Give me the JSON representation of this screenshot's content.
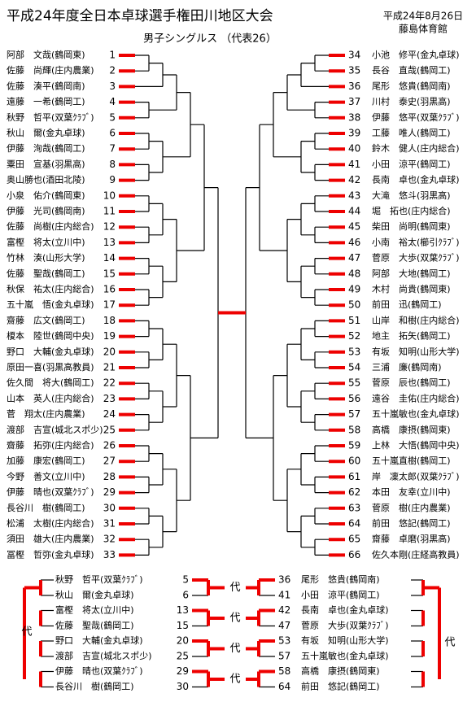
{
  "header": {
    "title": "平成24年度全日本卓球選手権田川地区大会",
    "subtitle": "男子シングルス （代表26）",
    "date": "平成24年8月26日",
    "venue": "藤島体育館"
  },
  "left_players": [
    {
      "name": "阿部　文哉(鶴岡東)",
      "no": 1
    },
    {
      "name": "佐藤　尚輝(庄内農業)",
      "no": 2
    },
    {
      "name": "佐藤　湊平(鶴岡南)",
      "no": 3
    },
    {
      "name": "遠藤　一希(鶴岡工)",
      "no": 4
    },
    {
      "name": "秋野　哲平(双葉ｸﾗﾌﾞ)",
      "no": 5
    },
    {
      "name": "秋山　爾(金丸卓球)",
      "no": 6
    },
    {
      "name": "伊藤　洵哉(鶴岡工)",
      "no": 7
    },
    {
      "name": "粟田　宣基(羽黒高)",
      "no": 8
    },
    {
      "name": "奥山勝也(酒田北陵)",
      "no": 9
    },
    {
      "name": "小泉　佑介(鶴岡東)",
      "no": 10
    },
    {
      "name": "伊藤　光司(鶴岡南)",
      "no": 11
    },
    {
      "name": "佐藤　尚樹(庄内総合)",
      "no": 12
    },
    {
      "name": "富樫　将太(立川中)",
      "no": 13
    },
    {
      "name": "竹林　湊(山形大学)",
      "no": 14
    },
    {
      "name": "佐藤　聖哉(鶴岡工)",
      "no": 15
    },
    {
      "name": "秋保　祐太(庄内総合)",
      "no": 16
    },
    {
      "name": "五十嵐　悟(金丸卓球)",
      "no": 17
    },
    {
      "name": "齋藤　広文(鶴岡工)",
      "no": 18
    },
    {
      "name": "榎本　陸世(鶴岡中央)",
      "no": 19
    },
    {
      "name": "野口　大輔(金丸卓球)",
      "no": 20
    },
    {
      "name": "原田一喜(羽黒高教員)",
      "no": 21
    },
    {
      "name": "佐久間　将大(鶴岡工)",
      "no": 22
    },
    {
      "name": "山本　英人(庄内総合)",
      "no": 23
    },
    {
      "name": "菅　翔太(庄内農業)",
      "no": 24
    },
    {
      "name": "渡部　吉宣(城北スポ少)",
      "no": 25
    },
    {
      "name": "齋藤　拓弥(庄内総合)",
      "no": 26
    },
    {
      "name": "加藤　康宏(鶴岡工)",
      "no": 27
    },
    {
      "name": "今野　善文(立川中)",
      "no": 28
    },
    {
      "name": "伊藤　晴也(双葉ｸﾗﾌﾞ)",
      "no": 29
    },
    {
      "name": "長谷川　樹(鶴岡工)",
      "no": 30
    },
    {
      "name": "松浦　太樹(庄内総合)",
      "no": 31
    },
    {
      "name": "須田　雄大(庄内農業)",
      "no": 32
    },
    {
      "name": "冨樫　哲弥(金丸卓球)",
      "no": 33
    }
  ],
  "right_players": [
    {
      "name": "小池　修平(金丸卓球)",
      "no": 34
    },
    {
      "name": "長谷　直哉(鶴岡工)",
      "no": 35
    },
    {
      "name": "尾形　悠貴(鶴岡南)",
      "no": 36
    },
    {
      "name": "川村　泰史(羽黒高)",
      "no": 37
    },
    {
      "name": "伊藤　悠平(双葉ｸﾗﾌﾞ)",
      "no": 38
    },
    {
      "name": "工藤　唯人(鶴岡工)",
      "no": 39
    },
    {
      "name": "鈴木　健人(庄内総合)",
      "no": 40
    },
    {
      "name": "小田　涼平(鶴岡工)",
      "no": 41
    },
    {
      "name": "長南　卓也(金丸卓球)",
      "no": 42
    },
    {
      "name": "大滝　悠斗(羽黒高)",
      "no": 43
    },
    {
      "name": "堀　拓也(庄内総合)",
      "no": 44
    },
    {
      "name": "柴田　尚明(鶴岡東)",
      "no": 45
    },
    {
      "name": "小南　裕太(櫛引ｸﾗﾌﾞ)",
      "no": 46
    },
    {
      "name": "菅原　大歩(双葉ｸﾗﾌﾞ)",
      "no": 47
    },
    {
      "name": "阿部　大地(鶴岡工)",
      "no": 48
    },
    {
      "name": "木村　尚貴(鶴岡東)",
      "no": 49
    },
    {
      "name": "前田　迅(鶴岡工)",
      "no": 50
    },
    {
      "name": "山岸　和樹(庄内総合)",
      "no": 51
    },
    {
      "name": "地主　拓矢(鶴岡工)",
      "no": 52
    },
    {
      "name": "有坂　知明(山形大学)",
      "no": 53
    },
    {
      "name": "三浦　廉(鶴岡南)",
      "no": 54
    },
    {
      "name": "菅原　辰也(鶴岡工)",
      "no": 55
    },
    {
      "name": "遠谷　圭佑(庄内総合)",
      "no": 56
    },
    {
      "name": "五十嵐敏也(金丸卓球)",
      "no": 57
    },
    {
      "name": "高橋　康摂(鶴岡東)",
      "no": 58
    },
    {
      "name": "上林　大悟(鶴岡中央)",
      "no": 59
    },
    {
      "name": "五十嵐直樹(鶴岡工)",
      "no": 60
    },
    {
      "name": "岸　凜太郎(双葉ｸﾗﾌﾞ)",
      "no": 61
    },
    {
      "name": "本田　友幸(立川中)",
      "no": 62
    },
    {
      "name": "菅原　樹(庄内農業)",
      "no": 63
    },
    {
      "name": "前田　悠記(鶴岡工)",
      "no": 64
    },
    {
      "name": "齋藤　卓磨(羽黒高)",
      "no": 65
    },
    {
      "name": "佐久本剛(庄経高教員)",
      "no": 66
    }
  ],
  "playoff": {
    "matches": [
      {
        "left": [
          {
            "name": "秋野　哲平(双葉ｸﾗﾌﾞ)",
            "no": 5
          },
          {
            "name": "秋山　爾(金丸卓球)",
            "no": 6
          }
        ],
        "label": "代",
        "right": [
          {
            "name": "尾形　悠貴(鶴岡南)",
            "no": 36
          },
          {
            "name": "小田　涼平(鶴岡工)",
            "no": 41
          }
        ]
      },
      {
        "left": [
          {
            "name": "富樫　将太(立川中)",
            "no": 13
          },
          {
            "name": "佐藤　聖哉(鶴岡工)",
            "no": 15
          }
        ],
        "label": "代",
        "right": [
          {
            "name": "長南　卓也(金丸卓球)",
            "no": 42
          },
          {
            "name": "菅原　大歩(双葉ｸﾗﾌﾞ)",
            "no": 47
          }
        ]
      },
      {
        "left": [
          {
            "name": "野口　大輔(金丸卓球)",
            "no": 20
          },
          {
            "name": "渡部　吉宣(城北スポ少)",
            "no": 25
          }
        ],
        "label": "代",
        "right": [
          {
            "name": "有坂　知明(山形大学)",
            "no": 53
          },
          {
            "name": "五十嵐敏也(金丸卓球)",
            "no": 57
          }
        ]
      },
      {
        "left": [
          {
            "name": "伊藤　晴也(双葉ｸﾗﾌﾞ)",
            "no": 29
          },
          {
            "name": "長谷川　樹(鶴岡工)",
            "no": 30
          }
        ],
        "label": "代",
        "right": [
          {
            "name": "高橋　康摂(鶴岡東)",
            "no": 58
          },
          {
            "name": "前田　悠記(鶴岡工)",
            "no": 64
          }
        ]
      }
    ],
    "outer_left": "代",
    "outer_right": "代"
  }
}
